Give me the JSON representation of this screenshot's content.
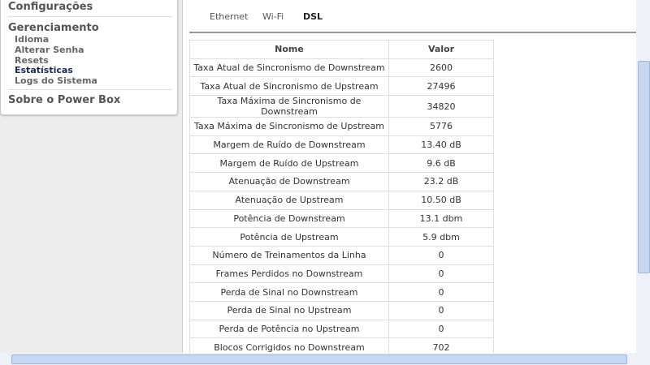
{
  "sidebar": {
    "sections": [
      {
        "label": "Configurações"
      },
      {
        "label": "Gerenciamento",
        "items": [
          "Idioma",
          "Alterar Senha",
          "Resets",
          "Estatísticas",
          "Logs do Sistema"
        ]
      },
      {
        "label": "Sobre o Power Box"
      }
    ]
  },
  "tabs": [
    "Ethernet",
    "Wi-Fi",
    "DSL"
  ],
  "table": {
    "header": [
      "Nome",
      "Valor"
    ],
    "rows": [
      [
        "Taxa Atual de Sincronismo de Downstream",
        "2600"
      ],
      [
        "Taxa Atual de Sincronismo de Upstream",
        "27496"
      ],
      [
        "Taxa Máxima de Sincronismo de Downstream",
        "34820"
      ],
      [
        "Taxa Máxima de Sincronismo de Upstream",
        "5776"
      ],
      [
        "Margem de Ruído de Downstream",
        "13.40 dB"
      ],
      [
        "Margem de Ruído de Upstream",
        "9.6 dB"
      ],
      [
        "Atenuação de Downstream",
        "23.2 dB"
      ],
      [
        "Atenuação de Upstream",
        "10.50 dB"
      ],
      [
        "Potência de Downstream",
        "13.1 dbm"
      ],
      [
        "Potência de Upstream",
        "5.9 dbm"
      ],
      [
        "Número de Treinamentos da Linha",
        "0"
      ],
      [
        "Frames Perdidos no Downstream",
        "0"
      ],
      [
        "Perda de Sinal no Downstream",
        "0"
      ],
      [
        "Perda de Sinal no Upstream",
        "0"
      ],
      [
        "Perda de Potência no Upstream",
        "0"
      ],
      [
        "Blocos Corrigidos no Downstream",
        "702"
      ]
    ]
  }
}
